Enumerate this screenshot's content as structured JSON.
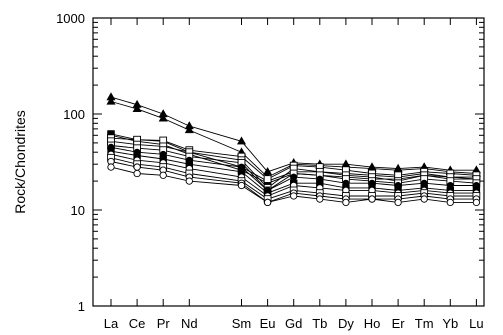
{
  "chart_data": {
    "type": "line",
    "title": "",
    "xlabel": "",
    "ylabel": "Rock/Chondrites",
    "y_scale": "log",
    "ylim": [
      1,
      1000
    ],
    "y_ticks": [
      "1",
      "10",
      "100",
      "1000"
    ],
    "grid": false,
    "categories": [
      "La",
      "Ce",
      "Pr",
      "Nd",
      "Sm",
      "Eu",
      "Gd",
      "Tb",
      "Dy",
      "Ho",
      "Er",
      "Tm",
      "Yb",
      "Lu"
    ],
    "x_positions": [
      1,
      2,
      3,
      4,
      6,
      7,
      8,
      9,
      10,
      11,
      12,
      13,
      14,
      15
    ],
    "series": [
      {
        "marker": "filled-triangle",
        "values": [
          150,
          125,
          100,
          75,
          52,
          25,
          31,
          30,
          30,
          28,
          27,
          28,
          26,
          26
        ]
      },
      {
        "marker": "filled-triangle",
        "values": [
          135,
          113,
          90,
          68,
          40,
          22,
          30,
          29,
          28,
          27,
          26,
          27,
          25,
          24
        ]
      },
      {
        "marker": "filled-square",
        "values": [
          62,
          54,
          52,
          40,
          28,
          20,
          25,
          25,
          24,
          23,
          22,
          24,
          22,
          22
        ]
      },
      {
        "marker": "filled-square",
        "values": [
          60,
          52,
          48,
          38,
          26,
          19,
          24,
          23,
          22,
          21,
          21,
          23,
          21,
          21
        ]
      },
      {
        "marker": "open-square",
        "values": [
          56,
          54,
          53,
          42,
          36,
          21,
          29,
          28,
          26,
          24,
          23,
          25,
          24,
          23
        ]
      },
      {
        "marker": "open-square",
        "values": [
          52,
          48,
          46,
          40,
          33,
          17,
          27,
          25,
          23,
          22,
          20,
          23,
          22,
          21
        ]
      },
      {
        "marker": "open-square",
        "values": [
          47,
          44,
          42,
          36,
          31,
          16,
          24,
          23,
          21,
          20,
          19,
          21,
          20,
          19
        ]
      },
      {
        "marker": "filled-circle",
        "values": [
          45,
          40,
          38,
          33,
          28,
          16,
          22,
          21,
          19,
          19,
          18,
          19,
          18,
          18
        ]
      },
      {
        "marker": "filled-square",
        "values": [
          41,
          37,
          34,
          30,
          25,
          15,
          19,
          19,
          17,
          17,
          16,
          17,
          16,
          16
        ]
      },
      {
        "marker": "open-circle",
        "values": [
          38,
          33,
          31,
          27,
          22,
          14,
          18,
          17,
          16,
          16,
          15,
          16,
          15,
          15
        ]
      },
      {
        "marker": "open-square",
        "values": [
          35,
          30,
          28,
          24,
          20,
          13,
          16,
          15,
          14,
          14,
          14,
          15,
          14,
          14
        ]
      },
      {
        "marker": "open-circle",
        "values": [
          32,
          28,
          26,
          22,
          19,
          12,
          15,
          14,
          13,
          13,
          13,
          14,
          13,
          13
        ]
      },
      {
        "marker": "open-circle",
        "values": [
          28,
          24,
          23,
          20,
          18,
          12,
          14,
          13,
          12,
          13,
          12,
          13,
          12,
          12
        ]
      }
    ]
  }
}
